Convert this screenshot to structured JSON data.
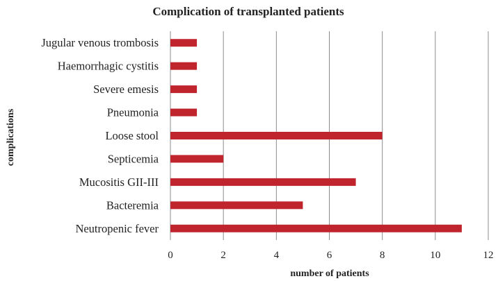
{
  "chart_data": {
    "type": "bar",
    "orientation": "horizontal",
    "title": "Complication of transplanted patients",
    "xlabel": "number of patients",
    "ylabel": "complications",
    "categories": [
      "Jugular venous trombosis",
      "Haemorrhagic cystitis",
      "Severe emesis",
      "Pneumonia",
      "Loose stool",
      "Septicemia",
      "Mucositis GII-III",
      "Bacteremia",
      "Neutropenic fever"
    ],
    "values": [
      1,
      1,
      1,
      1,
      8,
      2,
      7,
      5,
      11
    ],
    "xlim": [
      0,
      12
    ],
    "xticks": [
      0,
      2,
      4,
      6,
      8,
      10,
      12
    ],
    "grid": "vertical",
    "legend": "none",
    "bar_color": "#c0252e",
    "gridline_color": "#8c8c8c"
  }
}
